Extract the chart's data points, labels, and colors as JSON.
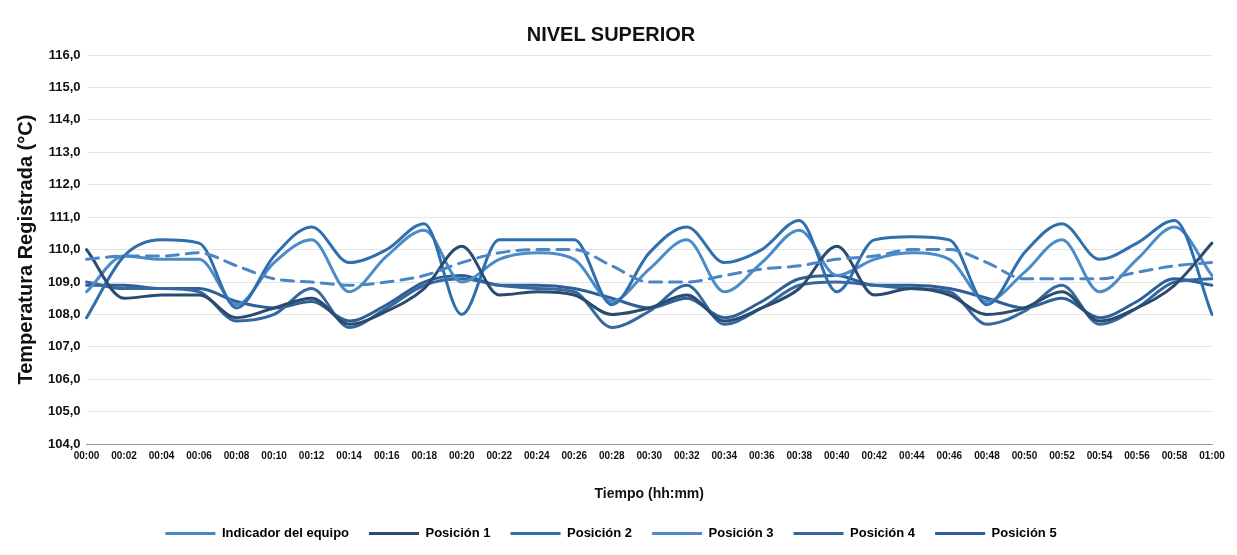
{
  "chart_data": {
    "type": "line",
    "title": "NIVEL SUPERIOR",
    "xlabel": "Tiempo (hh:mm)",
    "ylabel": "Temperatura Registrada (°C)",
    "categories": [
      "00:00",
      "00:02",
      "00:04",
      "00:06",
      "00:08",
      "00:10",
      "00:12",
      "00:14",
      "00:16",
      "00:18",
      "00:20",
      "00:22",
      "00:24",
      "00:26",
      "00:28",
      "00:30",
      "00:32",
      "00:34",
      "00:36",
      "00:38",
      "00:40",
      "00:42",
      "00:44",
      "00:46",
      "00:48",
      "00:50",
      "00:52",
      "00:54",
      "00:56",
      "00:58",
      "01:00"
    ],
    "ylim": [
      104,
      116
    ],
    "yticks": [
      {
        "value": 104,
        "label": "104,0"
      },
      {
        "value": 105,
        "label": "105,0"
      },
      {
        "value": 106,
        "label": "106,0"
      },
      {
        "value": 107,
        "label": "107,0"
      },
      {
        "value": 108,
        "label": "108,0"
      },
      {
        "value": 109,
        "label": "109,0"
      },
      {
        "value": 110,
        "label": "110,0"
      },
      {
        "value": 111,
        "label": "111,0"
      },
      {
        "value": 112,
        "label": "112,0"
      },
      {
        "value": 113,
        "label": "113,0"
      },
      {
        "value": 114,
        "label": "114,0"
      },
      {
        "value": 115,
        "label": "115,0"
      },
      {
        "value": 116,
        "label": "116,0"
      }
    ],
    "grid": "y",
    "legend": "bottom",
    "marker": "none",
    "series": [
      {
        "name": "Indicador del equipo",
        "color": "#4a86c5",
        "line_style": "dashed",
        "values": [
          109.7,
          109.8,
          109.8,
          109.9,
          109.5,
          109.1,
          109.0,
          108.9,
          109.0,
          109.2,
          109.6,
          109.9,
          110.0,
          110.0,
          109.5,
          109.0,
          109.0,
          109.2,
          109.4,
          109.5,
          109.7,
          109.8,
          110.0,
          110.0,
          109.6,
          109.1,
          109.1,
          109.1,
          109.3,
          109.5,
          109.6
        ]
      },
      {
        "name": "Posición 1",
        "color": "#2b4a6f",
        "values": [
          110.0,
          108.5,
          108.6,
          108.6,
          107.9,
          108.2,
          108.5,
          107.7,
          108.1,
          108.8,
          110.1,
          108.6,
          108.7,
          108.6,
          108.0,
          108.2,
          108.6,
          107.8,
          108.2,
          108.8,
          110.1,
          108.6,
          108.8,
          108.6,
          108.0,
          108.2,
          108.7,
          107.8,
          108.2,
          108.9,
          110.2
        ]
      },
      {
        "name": "Posición 2",
        "color": "#2f6fae",
        "values": [
          107.9,
          109.8,
          110.3,
          110.2,
          108.2,
          109.8,
          110.7,
          109.6,
          110.0,
          110.8,
          108.0,
          110.3,
          110.3,
          110.3,
          108.3,
          109.9,
          110.7,
          109.6,
          110.0,
          110.9,
          108.7,
          110.3,
          110.4,
          110.3,
          108.3,
          109.9,
          110.8,
          109.7,
          110.2,
          110.9,
          108.0
        ]
      },
      {
        "name": "Posición 3",
        "color": "#4b8bc8",
        "values": [
          108.7,
          109.8,
          109.7,
          109.7,
          108.3,
          109.6,
          110.3,
          108.7,
          109.8,
          110.6,
          109.0,
          109.7,
          109.9,
          109.7,
          108.4,
          109.4,
          110.3,
          108.7,
          109.6,
          110.6,
          109.2,
          109.7,
          109.9,
          109.7,
          108.4,
          109.3,
          110.3,
          108.7,
          109.7,
          110.7,
          109.2
        ]
      },
      {
        "name": "Posición 4",
        "color": "#3668a0",
        "values": [
          109.0,
          108.8,
          108.8,
          108.7,
          107.8,
          108.0,
          108.8,
          107.6,
          108.2,
          108.9,
          109.1,
          108.9,
          108.8,
          108.7,
          107.6,
          108.1,
          108.9,
          107.7,
          108.2,
          108.9,
          109.0,
          108.9,
          108.8,
          108.7,
          107.7,
          108.1,
          108.9,
          107.7,
          108.2,
          109.0,
          109.1
        ]
      },
      {
        "name": "Posición 5",
        "color": "#2e5f96",
        "values": [
          108.9,
          108.9,
          108.8,
          108.8,
          108.4,
          108.2,
          108.4,
          107.8,
          108.3,
          109.0,
          109.2,
          108.9,
          108.9,
          108.8,
          108.5,
          108.2,
          108.5,
          107.9,
          108.4,
          109.1,
          109.2,
          108.9,
          108.9,
          108.8,
          108.5,
          108.2,
          108.5,
          107.9,
          108.4,
          109.1,
          108.9
        ]
      }
    ]
  }
}
